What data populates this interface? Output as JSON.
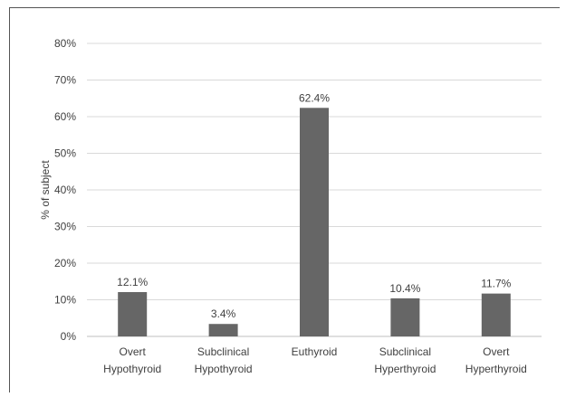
{
  "chart_data": {
    "type": "bar",
    "title": "",
    "xlabel": "",
    "ylabel": "% of subject",
    "ylim": [
      0,
      80
    ],
    "yticks": [
      "0%",
      "10%",
      "20%",
      "30%",
      "40%",
      "50%",
      "60%",
      "70%",
      "80%"
    ],
    "grid": true,
    "bar_color": "#666666",
    "categories": [
      [
        "Overt",
        "Hypothyroid"
      ],
      [
        "Subclinical",
        "Hypothyroid"
      ],
      [
        "Euthyroid"
      ],
      [
        "Subclinical",
        "Hyperthyroid"
      ],
      [
        "Overt",
        "Hyperthyroid"
      ]
    ],
    "values": [
      12.1,
      3.4,
      62.4,
      10.4,
      11.7
    ],
    "data_labels": [
      "12.1%",
      "3.4%",
      "62.4%",
      "10.4%",
      "11.7%"
    ]
  }
}
